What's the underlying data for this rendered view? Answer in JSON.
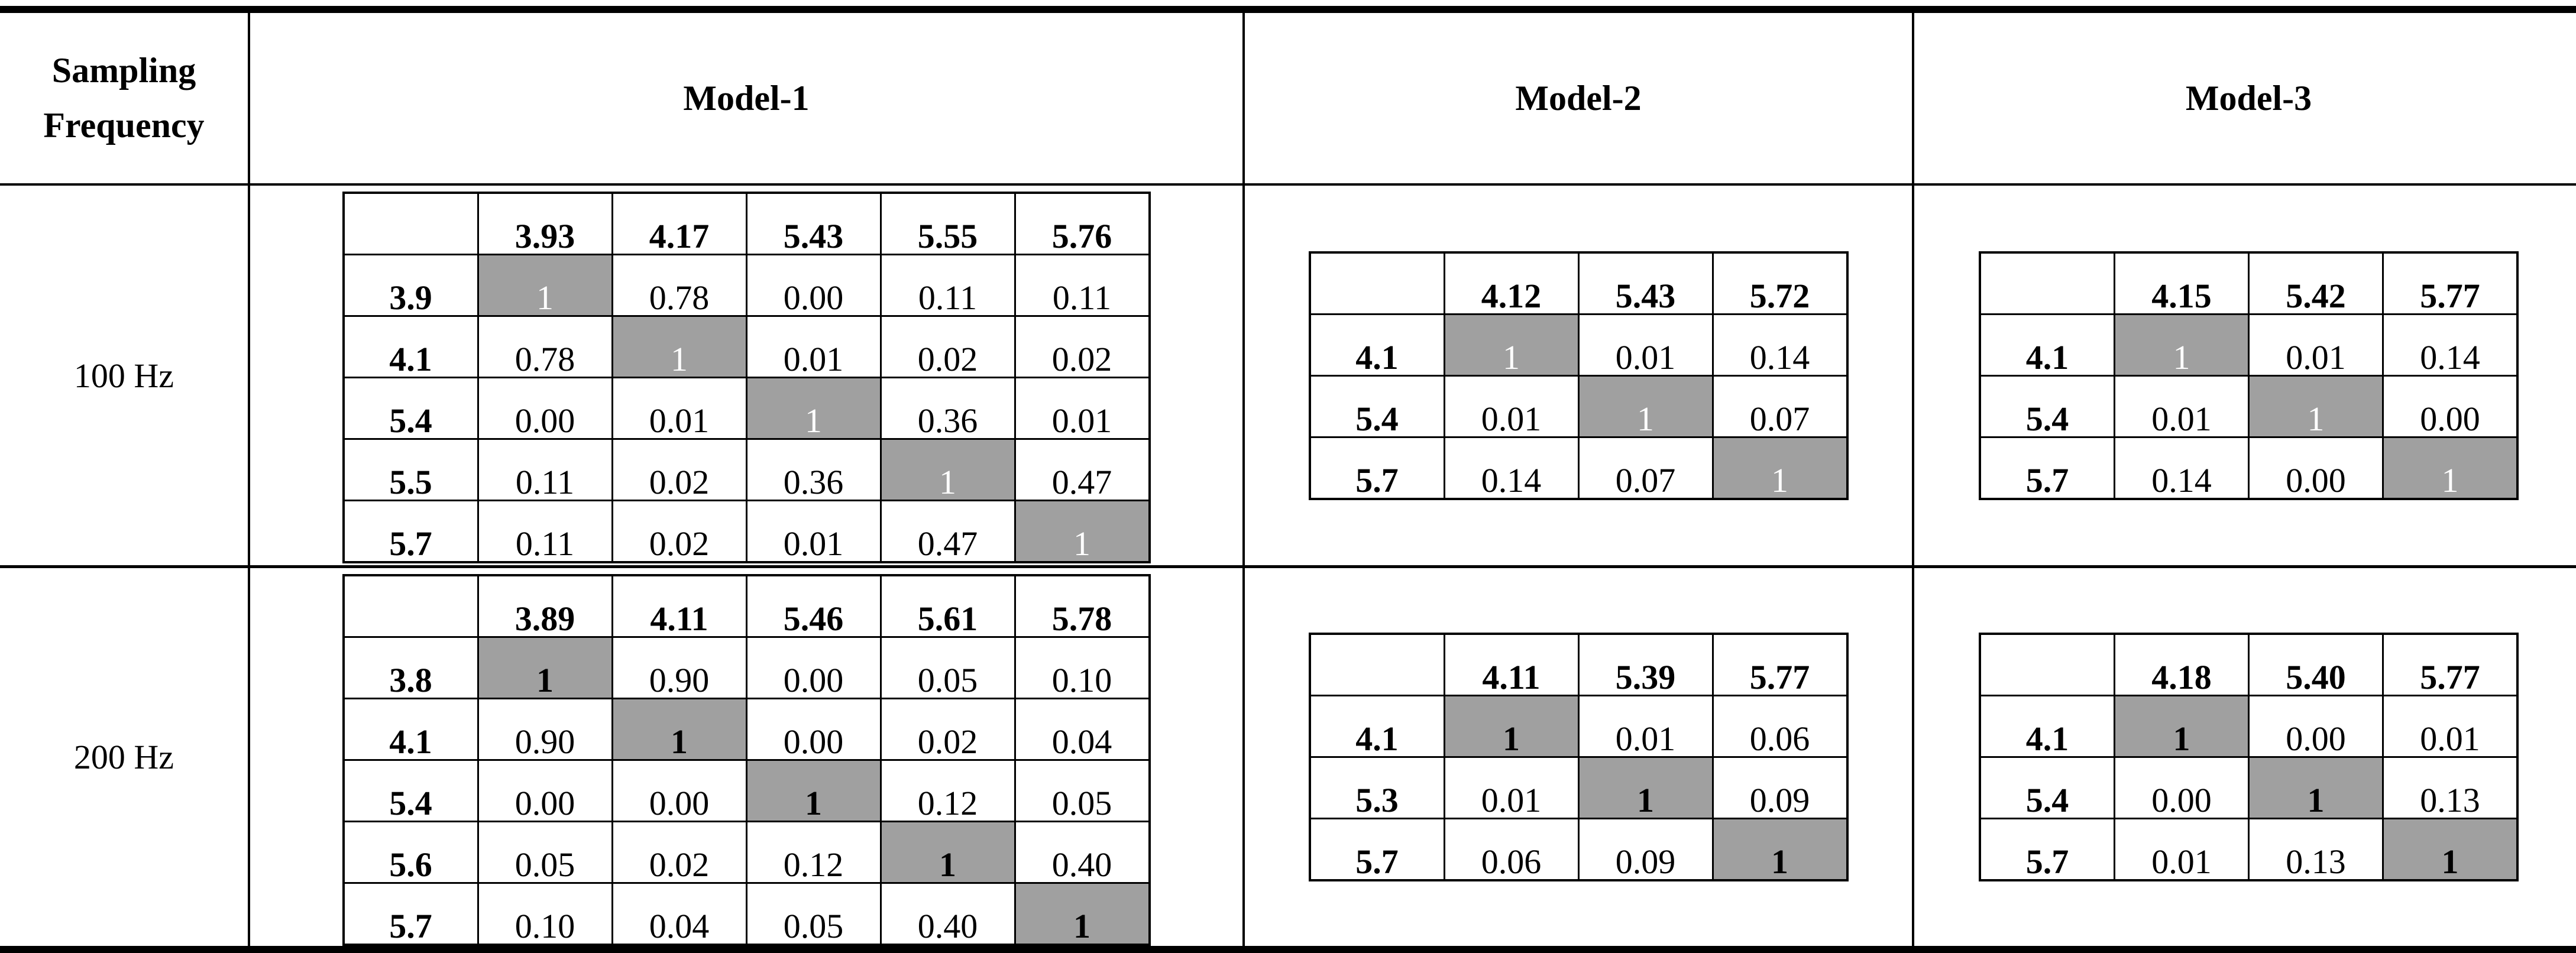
{
  "table": {
    "header": [
      "Sampling Frequency",
      "Model-1",
      "Model-2",
      "Model-3"
    ],
    "rows": [
      {
        "label": "100 Hz",
        "matrices": [
          {
            "columns": [
              "3.93",
              "4.17",
              "5.43",
              "5.55",
              "5.76"
            ],
            "rows": [
              {
                "label": "3.9",
                "cells": [
                  "1",
                  "0.78",
                  "0.00",
                  "0.11",
                  "0.11"
                ]
              },
              {
                "label": "4.1",
                "cells": [
                  "0.78",
                  "1",
                  "0.01",
                  "0.02",
                  "0.02"
                ]
              },
              {
                "label": "5.4",
                "cells": [
                  "0.00",
                  "0.01",
                  "1",
                  "0.36",
                  "0.01"
                ]
              },
              {
                "label": "5.5",
                "cells": [
                  "0.11",
                  "0.02",
                  "0.36",
                  "1",
                  "0.47"
                ]
              },
              {
                "label": "5.7",
                "cells": [
                  "0.11",
                  "0.02",
                  "0.01",
                  "0.47",
                  "1"
                ]
              }
            ]
          },
          {
            "columns": [
              "4.12",
              "5.43",
              "5.72"
            ],
            "rows": [
              {
                "label": "4.1",
                "cells": [
                  "1",
                  "0.01",
                  "0.14"
                ]
              },
              {
                "label": "5.4",
                "cells": [
                  "0.01",
                  "1",
                  "0.07"
                ]
              },
              {
                "label": "5.7",
                "cells": [
                  "0.14",
                  "0.07",
                  "1"
                ]
              }
            ]
          },
          {
            "columns": [
              "4.15",
              "5.42",
              "5.77"
            ],
            "rows": [
              {
                "label": "4.1",
                "cells": [
                  "1",
                  "0.01",
                  "0.14"
                ]
              },
              {
                "label": "5.4",
                "cells": [
                  "0.01",
                  "1",
                  "0.00"
                ]
              },
              {
                "label": "5.7",
                "cells": [
                  "0.14",
                  "0.00",
                  "1"
                ]
              }
            ]
          }
        ]
      },
      {
        "label": "200 Hz",
        "matrices": [
          {
            "columns": [
              "3.89",
              "4.11",
              "5.46",
              "5.61",
              "5.78"
            ],
            "rows": [
              {
                "label": "3.8",
                "cells": [
                  "1",
                  "0.90",
                  "0.00",
                  "0.05",
                  "0.10"
                ]
              },
              {
                "label": "4.1",
                "cells": [
                  "0.90",
                  "1",
                  "0.00",
                  "0.02",
                  "0.04"
                ]
              },
              {
                "label": "5.4",
                "cells": [
                  "0.00",
                  "0.00",
                  "1",
                  "0.12",
                  "0.05"
                ]
              },
              {
                "label": "5.6",
                "cells": [
                  "0.05",
                  "0.02",
                  "0.12",
                  "1",
                  "0.40"
                ]
              },
              {
                "label": "5.7",
                "cells": [
                  "0.10",
                  "0.04",
                  "0.05",
                  "0.40",
                  "1"
                ]
              }
            ]
          },
          {
            "columns": [
              "4.11",
              "5.39",
              "5.77"
            ],
            "rows": [
              {
                "label": "4.1",
                "cells": [
                  "1",
                  "0.01",
                  "0.06"
                ]
              },
              {
                "label": "5.3",
                "cells": [
                  "0.01",
                  "1",
                  "0.09"
                ]
              },
              {
                "label": "5.7",
                "cells": [
                  "0.06",
                  "0.09",
                  "1"
                ]
              }
            ]
          },
          {
            "columns": [
              "4.18",
              "5.40",
              "5.77"
            ],
            "rows": [
              {
                "label": "4.1",
                "cells": [
                  "1",
                  "0.00",
                  "0.01"
                ]
              },
              {
                "label": "5.4",
                "cells": [
                  "0.00",
                  "1",
                  "0.13"
                ]
              },
              {
                "label": "5.7",
                "cells": [
                  "0.01",
                  "0.13",
                  "1"
                ]
              }
            ]
          }
        ]
      }
    ]
  }
}
